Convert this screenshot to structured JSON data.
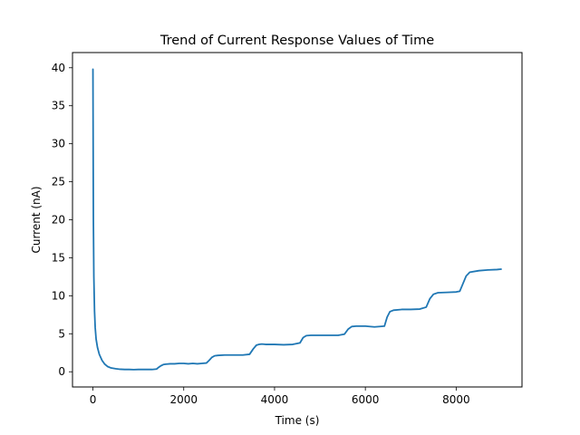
{
  "chart_data": {
    "type": "line",
    "title": "Trend of Current Response Values of Time",
    "xlabel": "Time (s)",
    "ylabel": "Current (nA)",
    "xlim": [
      -450,
      9450
    ],
    "ylim": [
      -2,
      42
    ],
    "xticks": [
      0,
      2000,
      4000,
      6000,
      8000
    ],
    "yticks": [
      0,
      5,
      10,
      15,
      20,
      25,
      30,
      35,
      40
    ],
    "grid": false,
    "legend": "none",
    "series": [
      {
        "color": "#1f77b4",
        "x": [
          0,
          10,
          20,
          35,
          50,
          70,
          100,
          140,
          200,
          260,
          320,
          400,
          500,
          600,
          700,
          800,
          900,
          1000,
          1100,
          1200,
          1300,
          1400,
          1450,
          1500,
          1550,
          1600,
          1700,
          1800,
          1900,
          2000,
          2100,
          2200,
          2300,
          2400,
          2500,
          2560,
          2620,
          2680,
          2750,
          2900,
          3100,
          3300,
          3450,
          3530,
          3600,
          3660,
          3720,
          3800,
          4000,
          4200,
          4400,
          4560,
          4630,
          4700,
          4800,
          5000,
          5200,
          5400,
          5540,
          5620,
          5700,
          5800,
          6000,
          6200,
          6420,
          6480,
          6540,
          6620,
          6800,
          7000,
          7200,
          7340,
          7420,
          7500,
          7600,
          7800,
          8000,
          8080,
          8150,
          8220,
          8300,
          8500,
          8700,
          8900,
          8990
        ],
        "y": [
          39.8,
          20,
          12.5,
          8,
          5.8,
          4.3,
          3.2,
          2.3,
          1.5,
          1.0,
          0.7,
          0.5,
          0.4,
          0.33,
          0.3,
          0.3,
          0.28,
          0.3,
          0.3,
          0.3,
          0.3,
          0.35,
          0.6,
          0.8,
          0.95,
          1.0,
          1.05,
          1.05,
          1.1,
          1.1,
          1.05,
          1.1,
          1.05,
          1.1,
          1.15,
          1.5,
          1.9,
          2.1,
          2.15,
          2.2,
          2.2,
          2.2,
          2.3,
          3.0,
          3.5,
          3.6,
          3.65,
          3.6,
          3.6,
          3.55,
          3.6,
          3.8,
          4.5,
          4.75,
          4.8,
          4.8,
          4.8,
          4.8,
          4.95,
          5.6,
          5.95,
          6.0,
          6.0,
          5.9,
          6.0,
          7.2,
          7.9,
          8.1,
          8.2,
          8.2,
          8.25,
          8.5,
          9.6,
          10.2,
          10.4,
          10.45,
          10.5,
          10.6,
          11.6,
          12.6,
          13.1,
          13.3,
          13.4,
          13.45,
          13.5
        ]
      }
    ]
  }
}
